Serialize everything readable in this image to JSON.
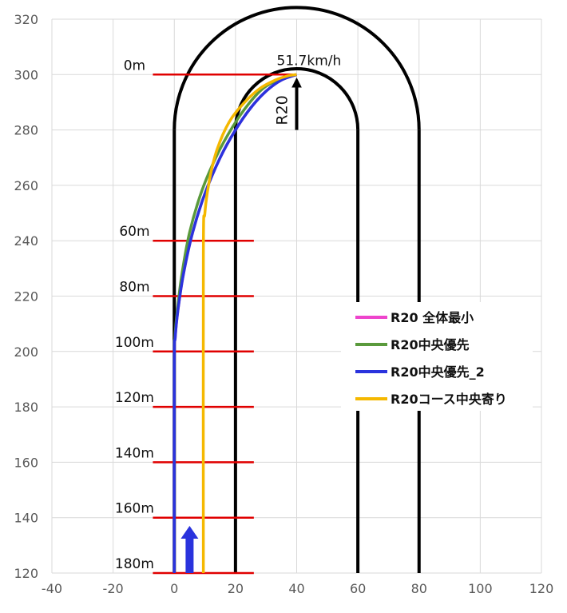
{
  "chart_data": {
    "type": "line",
    "title": "",
    "xlabel": "",
    "ylabel": "",
    "xlim": [
      -40,
      120
    ],
    "ylim": [
      120,
      320
    ],
    "x_ticks": [
      -40,
      -20,
      0,
      20,
      40,
      60,
      80,
      100,
      120
    ],
    "y_ticks": [
      120,
      140,
      160,
      180,
      200,
      220,
      240,
      260,
      280,
      300,
      320
    ],
    "grid": true,
    "legend_position": "right",
    "track": {
      "color": "#000000",
      "inner_straights_x": [
        20,
        60
      ],
      "outer_straights_x": [
        0,
        80
      ],
      "straight_top_y": 280,
      "straight_bottom_y": 120,
      "turn_center": [
        40,
        280
      ],
      "inner_radius": 20,
      "outer_radius": 40,
      "gap_inner_x60": [
        194,
        211
      ],
      "gap_outer_x80": [
        196,
        210
      ]
    },
    "distance_markers": {
      "color": "#e00000",
      "x_range": [
        -7,
        26
      ],
      "items": [
        {
          "label": "0m",
          "y": 300,
          "x_end": 40
        },
        {
          "label": "60m",
          "y": 240
        },
        {
          "label": "80m",
          "y": 220
        },
        {
          "label": "100m",
          "y": 200
        },
        {
          "label": "120m",
          "y": 180
        },
        {
          "label": "140m",
          "y": 160
        },
        {
          "label": "160m",
          "y": 140
        },
        {
          "label": "180m",
          "y": 120
        }
      ]
    },
    "series": [
      {
        "name": "R20 全体最小",
        "color": "#ee44cc",
        "x": [
          0,
          0,
          0.3,
          1.2,
          3,
          6,
          10,
          15,
          20,
          25,
          30,
          35,
          40
        ],
        "y": [
          120,
          195,
          205,
          215,
          228,
          243,
          257,
          270,
          280,
          288,
          294,
          298,
          300
        ]
      },
      {
        "name": "R20中央優先",
        "color": "#5a9a3c",
        "x": [
          0,
          0,
          0.2,
          1,
          2.5,
          5,
          9,
          14,
          19,
          24,
          29,
          34,
          40
        ],
        "y": [
          120,
          195,
          205,
          215,
          228,
          243,
          258,
          271,
          281,
          289,
          295,
          298,
          300
        ]
      },
      {
        "name": "R20中央優先_2",
        "color": "#2a33dd",
        "x": [
          0,
          0,
          0.3,
          1.2,
          3,
          6,
          10,
          15,
          20,
          25,
          30,
          35,
          40
        ],
        "y": [
          120,
          195,
          205,
          215,
          228,
          243,
          257,
          270,
          280,
          288,
          294,
          298,
          300
        ]
      },
      {
        "name": "R20コース中央寄り",
        "color": "#f5b800",
        "x": [
          9.5,
          9.5,
          10,
          11.5,
          14,
          18,
          23,
          28,
          33,
          37,
          40
        ],
        "y": [
          120,
          235,
          250,
          262,
          273,
          283,
          290,
          295,
          298,
          299.5,
          300
        ]
      }
    ],
    "annotations": {
      "speed": {
        "text": "51.7km/h",
        "x": 40,
        "y": 300
      },
      "radius": {
        "text": "R20",
        "arrow_x": 40,
        "arrow_from_y": 280,
        "arrow_to_y": 300
      },
      "start_arrow": {
        "x": 5,
        "from_y": 120,
        "to_y": 133,
        "color": "#2a33dd"
      }
    }
  }
}
